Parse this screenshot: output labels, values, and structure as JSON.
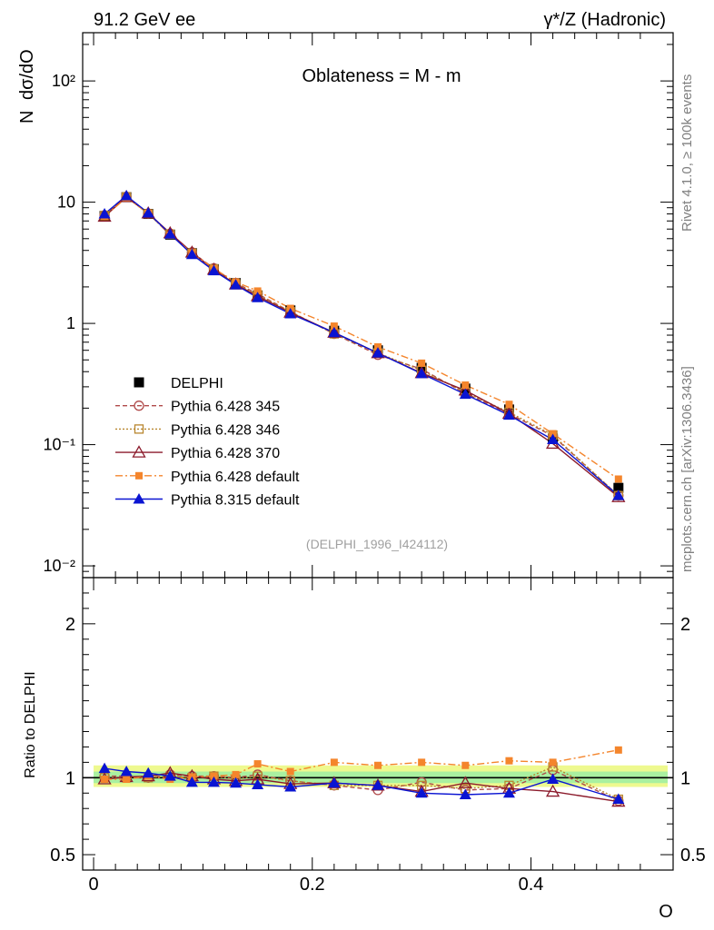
{
  "header": {
    "left": "91.2 GeV ee",
    "right": "γ*/Z (Hadronic)"
  },
  "side_labels": {
    "rivet": "Rivet 4.1.0, ≥ 100k events",
    "mcplots": "mcplots.cern.ch [arXiv:1306.3436]"
  },
  "chart_data": [
    {
      "type": "line",
      "panel": "main",
      "title": "Oblateness = M - m",
      "watermark": "(DELPHI_1996_I424112)",
      "ylabel_n": "N",
      "ylabel_frac": "dσ/dO",
      "yscale": "log",
      "ylim": [
        0.008,
        250
      ],
      "xlim": [
        -0.01,
        0.53
      ],
      "y_ticks": [
        {
          "value": 100,
          "label": "10²"
        },
        {
          "value": 10,
          "label": "10"
        },
        {
          "value": 1,
          "label": "1"
        },
        {
          "value": 0.1,
          "label": "10⁻¹"
        },
        {
          "value": 0.01,
          "label": "10⁻²"
        }
      ],
      "x": [
        0.01,
        0.03,
        0.05,
        0.07,
        0.09,
        0.11,
        0.13,
        0.15,
        0.18,
        0.22,
        0.26,
        0.3,
        0.34,
        0.38,
        0.42,
        0.48
      ],
      "series": [
        {
          "name": "DELPHI",
          "color": "#000000",
          "marker": "filled-square",
          "dash": "none",
          "values": [
            7.7,
            11.0,
            8.0,
            5.4,
            3.8,
            2.8,
            2.15,
            1.7,
            1.28,
            0.87,
            0.6,
            0.43,
            0.29,
            0.195,
            0.112,
            0.044
          ]
        },
        {
          "name": "Pythia 6.428 345",
          "color": "#b04a4a",
          "marker": "open-circle",
          "dash": "5,3",
          "values": [
            7.8,
            11.1,
            8.05,
            5.5,
            3.85,
            2.85,
            2.15,
            1.75,
            1.25,
            0.82,
            0.55,
            0.42,
            0.265,
            0.18,
            0.118,
            0.038
          ]
        },
        {
          "name": "Pythia 6.428 346",
          "color": "#b8862e",
          "marker": "open-square",
          "dash": "2,2",
          "values": [
            7.75,
            11.05,
            8.0,
            5.45,
            3.8,
            2.82,
            2.12,
            1.72,
            1.25,
            0.82,
            0.57,
            0.41,
            0.27,
            0.185,
            0.12,
            0.038
          ]
        },
        {
          "name": "Pythia 6.428 370",
          "color": "#8b1a2b",
          "marker": "open-triangle",
          "dash": "none",
          "values": [
            7.6,
            11.05,
            8.1,
            5.55,
            3.85,
            2.78,
            2.1,
            1.68,
            1.23,
            0.84,
            0.57,
            0.39,
            0.28,
            0.18,
            0.102,
            0.037
          ]
        },
        {
          "name": "Pythia 6.428 default",
          "color": "#f4852c",
          "marker": "filled-square-small",
          "dash": "8,3,2,3",
          "values": [
            7.6,
            10.9,
            8.1,
            5.35,
            3.82,
            2.83,
            2.2,
            1.85,
            1.33,
            0.95,
            0.64,
            0.47,
            0.31,
            0.215,
            0.123,
            0.052
          ]
        },
        {
          "name": "Pythia 8.315 default",
          "color": "#0a14d2",
          "marker": "filled-triangle",
          "dash": "none",
          "values": [
            8.0,
            11.3,
            8.15,
            5.45,
            3.7,
            2.72,
            2.08,
            1.63,
            1.2,
            0.84,
            0.57,
            0.385,
            0.26,
            0.175,
            0.11,
            0.038
          ]
        }
      ]
    },
    {
      "type": "line",
      "panel": "ratio",
      "ylabel": "Ratio to DELPHI",
      "xlabel": "O",
      "ylim": [
        0.4,
        2.3
      ],
      "xlim": [
        -0.01,
        0.53
      ],
      "y_ticks": [
        {
          "value": 0.5,
          "label": "0.5"
        },
        {
          "value": 1,
          "label": "1"
        },
        {
          "value": 2,
          "label": "2"
        }
      ],
      "x_ticks": [
        {
          "value": 0,
          "label": "0"
        },
        {
          "value": 0.2,
          "label": "0.2"
        },
        {
          "value": 0.4,
          "label": "0.4"
        }
      ],
      "x": [
        0.01,
        0.03,
        0.05,
        0.07,
        0.09,
        0.11,
        0.13,
        0.15,
        0.18,
        0.22,
        0.26,
        0.3,
        0.34,
        0.38,
        0.42,
        0.48
      ],
      "series": [
        {
          "name": "Pythia 6.428 345",
          "values": [
            1.01,
            1.01,
            1.0,
            1.02,
            1.01,
            1.01,
            1.0,
            1.02,
            0.98,
            0.95,
            0.92,
            0.97,
            0.92,
            0.93,
            1.05,
            0.85
          ]
        },
        {
          "name": "Pythia 6.428 346",
          "values": [
            1.0,
            1.0,
            1.0,
            1.01,
            1.0,
            1.01,
            0.99,
            1.01,
            0.98,
            0.95,
            0.95,
            0.95,
            0.93,
            0.95,
            1.07,
            0.86
          ]
        },
        {
          "name": "Pythia 6.428 370",
          "values": [
            0.99,
            1.005,
            1.01,
            1.03,
            1.01,
            0.99,
            0.98,
            0.99,
            0.96,
            0.965,
            0.95,
            0.91,
            0.965,
            0.93,
            0.91,
            0.845
          ]
        },
        {
          "name": "Pythia 6.428 default",
          "values": [
            0.99,
            0.99,
            1.01,
            0.99,
            1.005,
            1.01,
            1.02,
            1.09,
            1.04,
            1.1,
            1.08,
            1.1,
            1.08,
            1.11,
            1.1,
            1.18
          ]
        },
        {
          "name": "Pythia 8.315 default",
          "values": [
            1.06,
            1.04,
            1.03,
            1.01,
            0.97,
            0.97,
            0.965,
            0.955,
            0.94,
            0.965,
            0.95,
            0.9,
            0.89,
            0.9,
            0.99,
            0.86
          ]
        }
      ]
    }
  ]
}
